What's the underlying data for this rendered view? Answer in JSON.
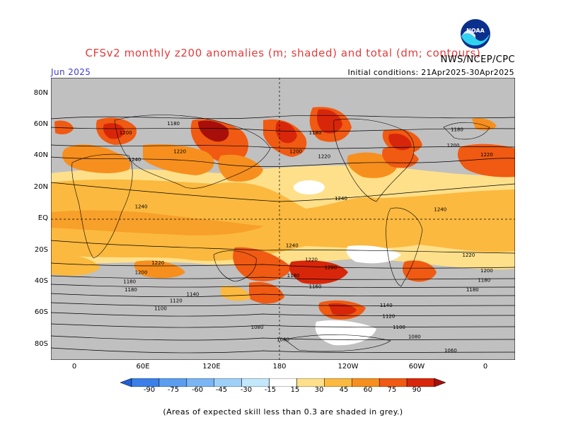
{
  "title": "CFSv2 monthly z200 anomalies (m; shaded) and total (dm; contours)",
  "agency": "NWS/NCEP/CPC",
  "month": "Jun 2025",
  "initial_conditions": "Initial conditions: 21Apr2025-30Apr2025",
  "logo_text": "NOAA",
  "footnote": "(Areas of expected skill less than 0.3 are shaded in grey.)",
  "lat_ticks": [
    "80N",
    "60N",
    "40N",
    "20N",
    "EQ",
    "20S",
    "40S",
    "60S",
    "80S"
  ],
  "lon_ticks": [
    "0",
    "60E",
    "120E",
    "180",
    "120W",
    "60W",
    "0"
  ],
  "colorbar": {
    "labels": [
      "-90",
      "-75",
      "-60",
      "-45",
      "-30",
      "-15",
      "15",
      "30",
      "45",
      "60",
      "75",
      "90"
    ],
    "colors": [
      "#1f5fd6",
      "#3a80e8",
      "#5b9ef0",
      "#7ab6f5",
      "#9fd0f8",
      "#c4e8fb",
      "#ffffff",
      "#ffe08a",
      "#fbb93f",
      "#f78f1e",
      "#f05a12",
      "#d8260a",
      "#a80f0a"
    ]
  },
  "colors": {
    "ocean_grey": "#c0c0c0",
    "band_15_30": "#ffe08a",
    "band_30_45": "#fbb93f",
    "band_45_60": "#f78f1e",
    "band_60_75": "#f05a12",
    "band_75_90": "#d8260a",
    "band_90_plus": "#a80f0a"
  },
  "contour_labels": [
    {
      "text": "1180",
      "lon": 75,
      "lat": 61
    },
    {
      "text": "1200",
      "lon": 38,
      "lat": 55
    },
    {
      "text": "1220",
      "lon": 80,
      "lat": 43
    },
    {
      "text": "1240",
      "lon": 45,
      "lat": 38
    },
    {
      "text": "1240",
      "lon": 50,
      "lat": 8
    },
    {
      "text": "1180",
      "lon": 185,
      "lat": 55
    },
    {
      "text": "1200",
      "lon": 170,
      "lat": 43
    },
    {
      "text": "1220",
      "lon": 192,
      "lat": 40
    },
    {
      "text": "1240",
      "lon": 205,
      "lat": 13
    },
    {
      "text": "1180",
      "lon": 295,
      "lat": 57
    },
    {
      "text": "1200",
      "lon": 292,
      "lat": 47
    },
    {
      "text": "1220",
      "lon": 318,
      "lat": 41
    },
    {
      "text": "1240",
      "lon": 282,
      "lat": 6
    },
    {
      "text": "1240",
      "lon": 167,
      "lat": -17
    },
    {
      "text": "1220",
      "lon": 182,
      "lat": -26
    },
    {
      "text": "1200",
      "lon": 197,
      "lat": -31
    },
    {
      "text": "1180",
      "lon": 168,
      "lat": -36
    },
    {
      "text": "1160",
      "lon": 185,
      "lat": -43
    },
    {
      "text": "1220",
      "lon": 63,
      "lat": -28
    },
    {
      "text": "1200",
      "lon": 50,
      "lat": -34
    },
    {
      "text": "1180",
      "lon": 41,
      "lat": -40
    },
    {
      "text": "1180",
      "lon": 42,
      "lat": -45
    },
    {
      "text": "1140",
      "lon": 90,
      "lat": -48
    },
    {
      "text": "1120",
      "lon": 77,
      "lat": -52
    },
    {
      "text": "1100",
      "lon": 65,
      "lat": -57
    },
    {
      "text": "1080",
      "lon": 140,
      "lat": -69
    },
    {
      "text": "1060",
      "lon": 160,
      "lat": -77
    },
    {
      "text": "1140",
      "lon": 240,
      "lat": -55
    },
    {
      "text": "1120",
      "lon": 242,
      "lat": -62
    },
    {
      "text": "1100",
      "lon": 250,
      "lat": -69
    },
    {
      "text": "1080",
      "lon": 262,
      "lat": -75
    },
    {
      "text": "1060",
      "lon": 290,
      "lat": -84
    },
    {
      "text": "1220",
      "lon": 304,
      "lat": -23
    },
    {
      "text": "1200",
      "lon": 318,
      "lat": -33
    },
    {
      "text": "1180",
      "lon": 316,
      "lat": -39
    },
    {
      "text": "1180",
      "lon": 307,
      "lat": -45
    }
  ]
}
